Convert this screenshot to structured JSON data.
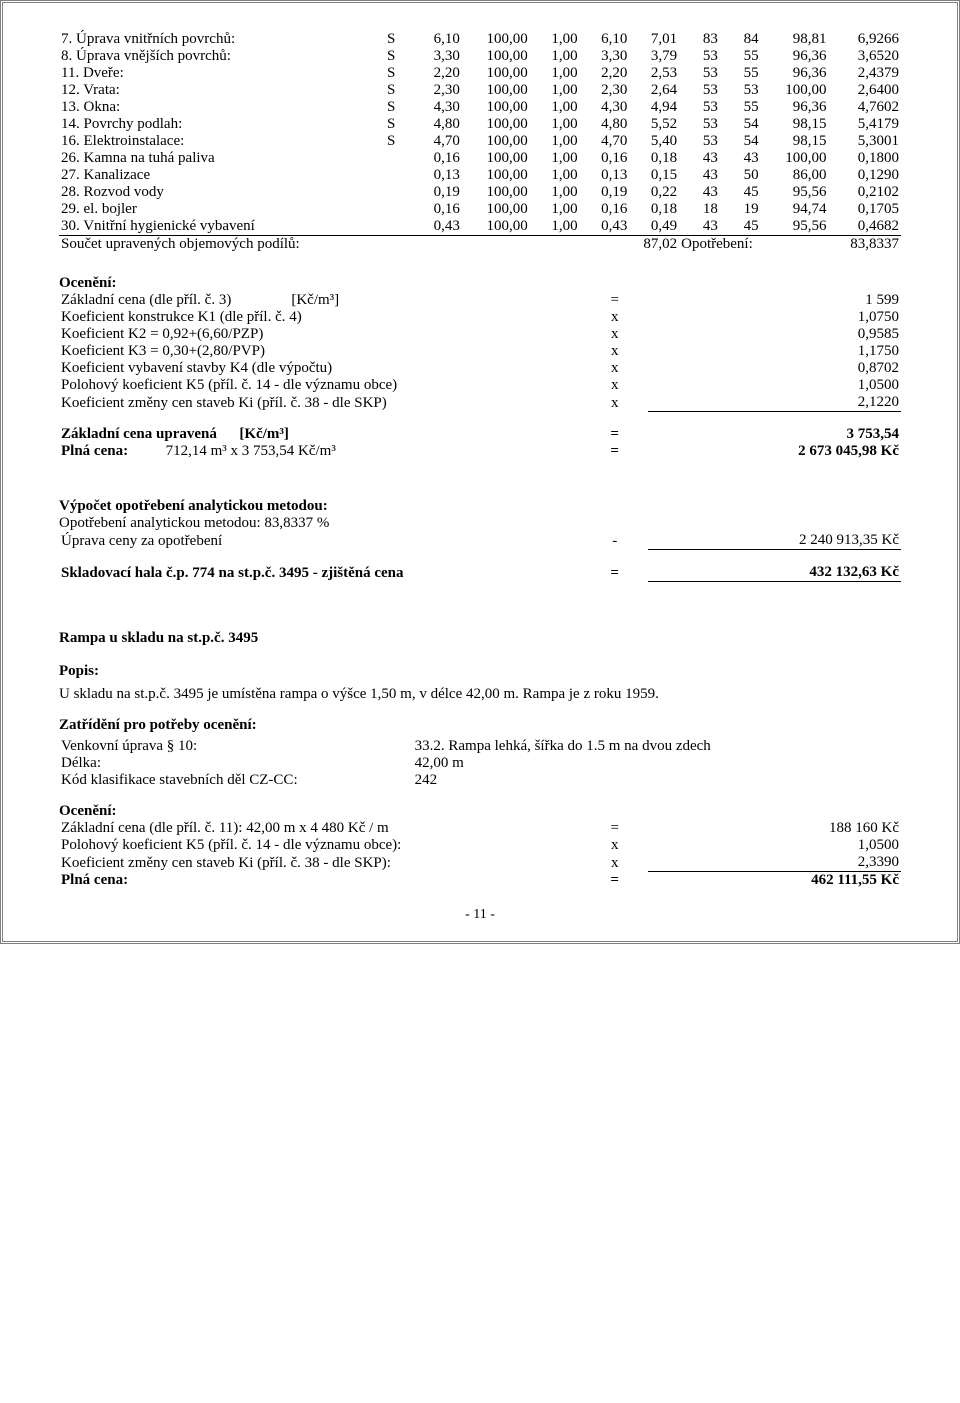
{
  "table_rows": [
    {
      "label": "7. Úprava vnitřních povrchů:",
      "s": "S",
      "v": [
        "6,10",
        "100,00",
        "1,00",
        "6,10",
        "7,01",
        "83",
        "84",
        "98,81",
        "6,9266"
      ]
    },
    {
      "label": "8. Úprava vnějších povrchů:",
      "s": "S",
      "v": [
        "3,30",
        "100,00",
        "1,00",
        "3,30",
        "3,79",
        "53",
        "55",
        "96,36",
        "3,6520"
      ]
    },
    {
      "label": "11. Dveře:",
      "s": "S",
      "v": [
        "2,20",
        "100,00",
        "1,00",
        "2,20",
        "2,53",
        "53",
        "55",
        "96,36",
        "2,4379"
      ]
    },
    {
      "label": "12. Vrata:",
      "s": "S",
      "v": [
        "2,30",
        "100,00",
        "1,00",
        "2,30",
        "2,64",
        "53",
        "53",
        "100,00",
        "2,6400"
      ]
    },
    {
      "label": "13. Okna:",
      "s": "S",
      "v": [
        "4,30",
        "100,00",
        "1,00",
        "4,30",
        "4,94",
        "53",
        "55",
        "96,36",
        "4,7602"
      ]
    },
    {
      "label": "14. Povrchy podlah:",
      "s": "S",
      "v": [
        "4,80",
        "100,00",
        "1,00",
        "4,80",
        "5,52",
        "53",
        "54",
        "98,15",
        "5,4179"
      ]
    },
    {
      "label": "16. Elektroinstalace:",
      "s": "S",
      "v": [
        "4,70",
        "100,00",
        "1,00",
        "4,70",
        "5,40",
        "53",
        "54",
        "98,15",
        "5,3001"
      ]
    },
    {
      "label": "26. Kamna na tuhá paliva",
      "s": "",
      "v": [
        "0,16",
        "100,00",
        "1,00",
        "0,16",
        "0,18",
        "43",
        "43",
        "100,00",
        "0,1800"
      ]
    },
    {
      "label": "27. Kanalizace",
      "s": "",
      "v": [
        "0,13",
        "100,00",
        "1,00",
        "0,13",
        "0,15",
        "43",
        "50",
        "86,00",
        "0,1290"
      ]
    },
    {
      "label": "28. Rozvod vody",
      "s": "",
      "v": [
        "0,19",
        "100,00",
        "1,00",
        "0,19",
        "0,22",
        "43",
        "45",
        "95,56",
        "0,2102"
      ]
    },
    {
      "label": "29. el. bojler",
      "s": "",
      "v": [
        "0,16",
        "100,00",
        "1,00",
        "0,16",
        "0,18",
        "18",
        "19",
        "94,74",
        "0,1705"
      ]
    },
    {
      "label": "30. Vnitřní hygienické vybavení",
      "s": "",
      "v": [
        "0,43",
        "100,00",
        "1,00",
        "0,43",
        "0,49",
        "43",
        "45",
        "95,56",
        "0,4682"
      ]
    }
  ],
  "sum_label": "Součet upravených objemových podílů:",
  "sum_mid": "87,02",
  "sum_opo_label": "Opotřebení:",
  "sum_opo_val": "83,8337",
  "oceneni_h": "Ocenění:",
  "oceneni_rows": [
    {
      "label": "Základní cena (dle příl. č. 3)",
      "unit": "[Kč/m³]",
      "sign": "=",
      "val": "1 599"
    },
    {
      "label": "Koeficient konstrukce K1 (dle příl. č. 4)",
      "unit": "",
      "sign": "x",
      "val": "1,0750"
    },
    {
      "label": "Koeficient K2 = 0,92+(6,60/PZP)",
      "unit": "",
      "sign": "x",
      "val": "0,9585"
    },
    {
      "label": "Koeficient K3 = 0,30+(2,80/PVP)",
      "unit": "",
      "sign": "x",
      "val": "1,1750"
    },
    {
      "label": "Koeficient vybavení stavby K4 (dle výpočtu)",
      "unit": "",
      "sign": "x",
      "val": "0,8702"
    },
    {
      "label": "Polohový koeficient K5 (příl. č. 14 - dle významu obce)",
      "unit": "",
      "sign": "x",
      "val": "1,0500"
    },
    {
      "label": "Koeficient změny cen staveb Ki (příl. č. 38 - dle SKP)",
      "unit": "",
      "sign": "x",
      "val": "2,1220",
      "underline": true
    }
  ],
  "zcu_label": "Základní cena upravená",
  "zcu_unit": "[Kč/m³]",
  "zcu_sign": "=",
  "zcu_val": "3 753,54",
  "plna_label": "Plná cena:",
  "plna_expr": "712,14 m³ x 3 753,54 Kč/m³",
  "plna_sign": "=",
  "plna_val": "2 673 045,98 Kč",
  "vypocet_h": "Výpočet opotřebení analytickou metodou:",
  "opo_line": "Opotřebení analytickou metodou: 83,8337 %",
  "uprava_label": "Úprava ceny za opotřebení",
  "uprava_sign": "-",
  "uprava_val": "2 240 913,35 Kč",
  "final_label": "Skladovací hala č.p. 774 na st.p.č. 3495 - zjištěná cena",
  "final_sign": "=",
  "final_val": "432 132,63 Kč",
  "rampa_h": "Rampa u skladu na st.p.č. 3495",
  "popis_h": "Popis:",
  "popis_txt": "U skladu na st.p.č. 3495 je umístěna rampa o výšce 1,50 m, v délce 42,00 m. Rampa je z roku 1959.",
  "zatr_h": "Zatřídění pro potřeby ocenění:",
  "zatr_rows": [
    {
      "l": "Venkovní úprava § 10:",
      "r": "33.2. Rampa lehká, šířka do 1.5 m na dvou zdech"
    },
    {
      "l": "Délka:",
      "r": "42,00 m"
    },
    {
      "l": "Kód klasifikace stavebních děl CZ-CC:",
      "r": "242"
    }
  ],
  "oceneni2_h": "Ocenění:",
  "oceneni2_rows": [
    {
      "label": "Základní cena (dle příl. č. 11):    42,00 m x 4 480 Kč / m",
      "sign": "=",
      "val": "188 160 Kč"
    },
    {
      "label": "Polohový koeficient K5 (příl. č. 14 - dle významu obce):",
      "sign": "x",
      "val": "1,0500"
    },
    {
      "label": "Koeficient změny cen staveb Ki (příl. č. 38 - dle SKP):",
      "sign": "x",
      "val": "2,3390",
      "underline": true
    }
  ],
  "plna2_label": "Plná cena:",
  "plna2_sign": "=",
  "plna2_val": "462 111,55 Kč",
  "page_num": "- 11 -"
}
